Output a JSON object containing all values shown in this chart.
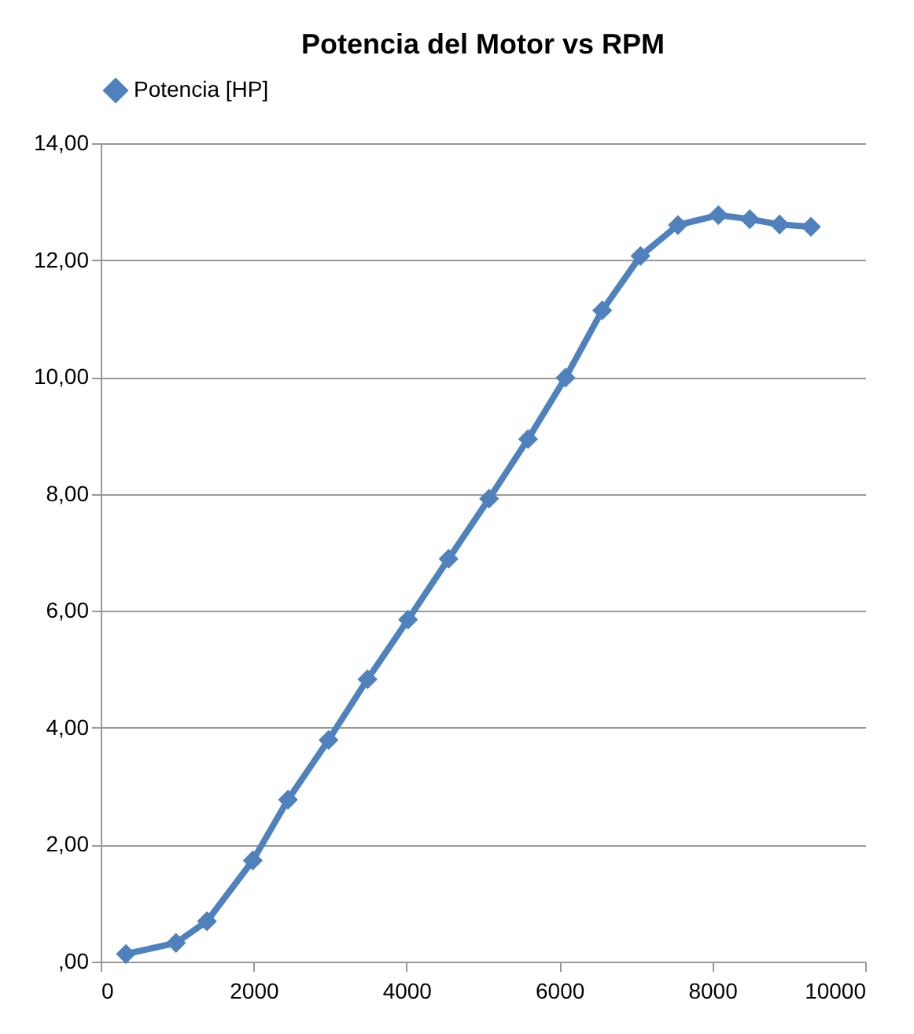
{
  "chart_data": {
    "type": "line",
    "title": "Potencia del Motor vs RPM",
    "x": [
      330,
      985,
      1390,
      1990,
      2450,
      2980,
      3490,
      4020,
      4550,
      5080,
      5590,
      6080,
      6560,
      7060,
      7550,
      8080,
      8490,
      8880,
      9290
    ],
    "series": [
      {
        "name": "Potencia [HP]",
        "color": "#4f81bd",
        "values": [
          0.13,
          0.32,
          0.69,
          1.73,
          2.77,
          3.79,
          4.83,
          5.85,
          6.89,
          7.92,
          8.94,
          9.99,
          11.14,
          12.07,
          12.6,
          12.77,
          12.7,
          12.61,
          12.57
        ]
      }
    ],
    "xlim": [
      0,
      10000
    ],
    "xticks": [
      0,
      2000,
      4000,
      6000,
      8000,
      10000
    ],
    "ylim": [
      0,
      14
    ],
    "yticks": [
      {
        "value": 0,
        "label": ",00"
      },
      {
        "value": 2,
        "label": "2,00"
      },
      {
        "value": 4,
        "label": "4,00"
      },
      {
        "value": 6,
        "label": "6,00"
      },
      {
        "value": 8,
        "label": "8,00"
      },
      {
        "value": 10,
        "label": "10,00"
      },
      {
        "value": 12,
        "label": "12,00"
      },
      {
        "value": 14,
        "label": "14,00"
      }
    ],
    "grid": "y",
    "legend": "top",
    "marker": "diamond",
    "line_style": "solid"
  }
}
